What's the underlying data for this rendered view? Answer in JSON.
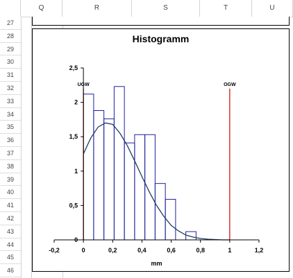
{
  "spreadsheet": {
    "columns": [
      "Q",
      "R",
      "S",
      "T",
      "U"
    ],
    "rows": [
      "27",
      "28",
      "29",
      "30",
      "31",
      "32",
      "33",
      "34",
      "35",
      "36",
      "37",
      "38",
      "39",
      "40",
      "41",
      "42",
      "43",
      "44",
      "45",
      "46"
    ]
  },
  "chart_data": {
    "type": "bar",
    "title": "Histogramm",
    "xlabel": "mm",
    "ylabel": "",
    "xlim": [
      -0.2,
      1.2
    ],
    "ylim": [
      0,
      2.5
    ],
    "xticks": [
      "-0,2",
      "0",
      "0,2",
      "0,4",
      "0,6",
      "0,8",
      "1",
      "1,2"
    ],
    "yticks": [
      "0",
      "0,5",
      "1",
      "1,5",
      "2",
      "2,5"
    ],
    "grid": false,
    "legend": "none",
    "bins": [
      {
        "x0": 0.0,
        "x1": 0.07,
        "value": 2.12
      },
      {
        "x0": 0.07,
        "x1": 0.14,
        "value": 1.88
      },
      {
        "x0": 0.14,
        "x1": 0.21,
        "value": 1.76
      },
      {
        "x0": 0.21,
        "x1": 0.28,
        "value": 2.23
      },
      {
        "x0": 0.28,
        "x1": 0.35,
        "value": 1.41
      },
      {
        "x0": 0.35,
        "x1": 0.42,
        "value": 1.53
      },
      {
        "x0": 0.42,
        "x1": 0.49,
        "value": 1.53
      },
      {
        "x0": 0.49,
        "x1": 0.56,
        "value": 0.82
      },
      {
        "x0": 0.56,
        "x1": 0.63,
        "value": 0.59
      },
      {
        "x0": 0.63,
        "x1": 0.7,
        "value": 0.0
      },
      {
        "x0": 0.7,
        "x1": 0.77,
        "value": 0.12
      }
    ],
    "curve": {
      "name": "",
      "x": [
        0.0,
        0.05,
        0.1,
        0.15,
        0.2,
        0.25,
        0.3,
        0.35,
        0.4,
        0.45,
        0.5,
        0.55,
        0.6,
        0.65,
        0.7,
        0.75,
        0.8,
        0.85,
        0.9,
        0.95,
        1.0
      ],
      "y": [
        1.25,
        1.48,
        1.64,
        1.7,
        1.68,
        1.55,
        1.37,
        1.15,
        0.92,
        0.7,
        0.5,
        0.34,
        0.21,
        0.13,
        0.07,
        0.04,
        0.02,
        0.01,
        0.005,
        0.0,
        0.0
      ]
    },
    "limits": [
      {
        "label": "UGW",
        "x": 0.0,
        "height": 2.2
      },
      {
        "label": "OGW",
        "x": 1.0,
        "height": 2.2
      }
    ],
    "colors": {
      "bar_edge": "#1f1f9e",
      "curve": "#1f3a66",
      "limit_line": "#cc0000",
      "axis": "#000000"
    }
  }
}
